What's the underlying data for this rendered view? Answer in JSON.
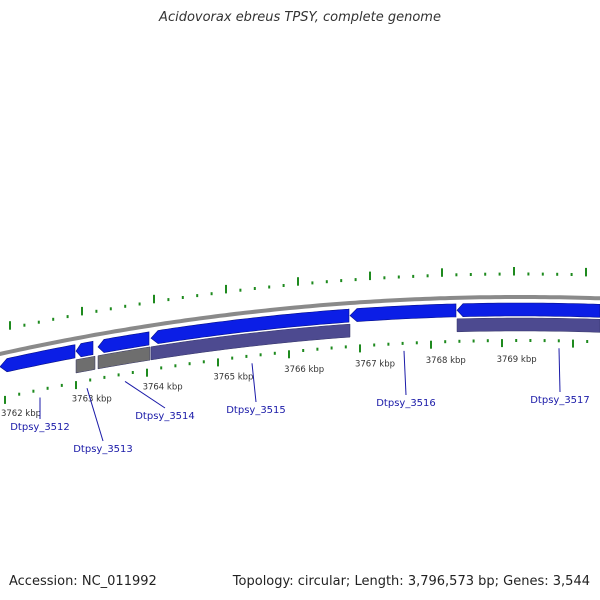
{
  "title": "Acidovorax ebreus TPSY, complete genome",
  "footer": {
    "accession_label": "Accession:",
    "accession": "NC_011992",
    "topology_label": "Topology:",
    "topology": "circular",
    "length_label": "Length:",
    "length": "3,796,573 bp",
    "genes_label": "Genes:",
    "genes": "3,544"
  },
  "colors": {
    "forward_gene": "#0b1ee6",
    "reverse_gene": "#4d4a90",
    "rna_gene": "#6e6e6e",
    "backbone": "#8a8a8a",
    "tick": "#1e8a1e",
    "label": "#1a1aa8"
  },
  "scale": {
    "unit": "kbp",
    "ticks": [
      {
        "value": 3762,
        "label": "3762 kbp"
      },
      {
        "value": 3763,
        "label": "3763 kbp"
      },
      {
        "value": 3764,
        "label": "3764 kbp"
      },
      {
        "value": 3765,
        "label": "3765 kbp"
      },
      {
        "value": 3766,
        "label": "3766 kbp"
      },
      {
        "value": 3767,
        "label": "3767 kbp"
      },
      {
        "value": 3768,
        "label": "3768 kbp"
      },
      {
        "value": 3769,
        "label": "3769 kbp"
      }
    ]
  },
  "genes": [
    {
      "id": "Dtpsy_3512"
    },
    {
      "id": "Dtpsy_3513"
    },
    {
      "id": "Dtpsy_3514"
    },
    {
      "id": "Dtpsy_3515"
    },
    {
      "id": "Dtpsy_3516"
    },
    {
      "id": "Dtpsy_3517"
    }
  ]
}
